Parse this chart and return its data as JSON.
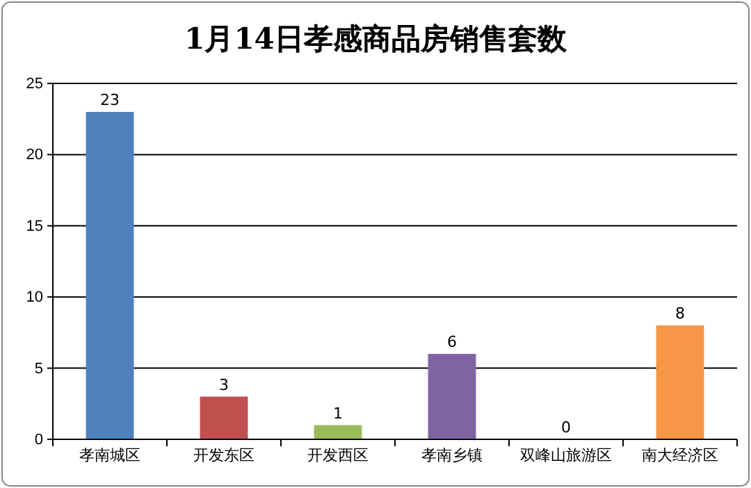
{
  "chart_data": {
    "type": "bar",
    "title": "1月14日孝感商品房销售套数",
    "categories": [
      "孝南城区",
      "开发东区",
      "开发西区",
      "孝南乡镇",
      "双峰山旅游区",
      "南大经济区"
    ],
    "values": [
      23,
      3,
      1,
      6,
      0,
      8
    ],
    "colors": [
      "#4f81bd",
      "#c0504d",
      "#9bbb59",
      "#8064a2",
      "#4bacc6",
      "#f79646"
    ],
    "ylim": [
      0,
      25
    ],
    "yticks": [
      0,
      5,
      10,
      15,
      20,
      25
    ],
    "grid": "y",
    "data_labels": true
  }
}
